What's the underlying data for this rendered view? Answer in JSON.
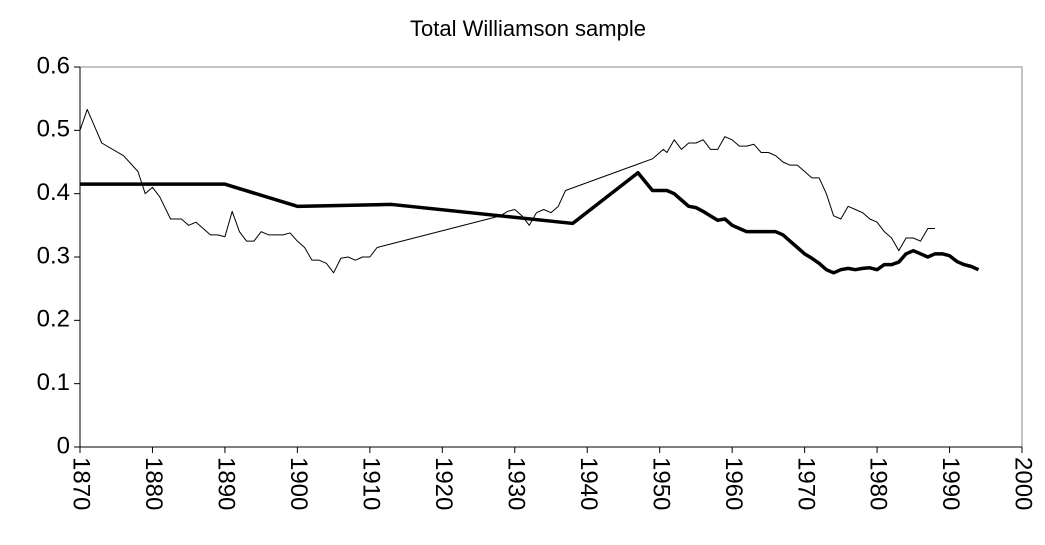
{
  "chart_data": {
    "type": "line",
    "title": "Total Williamson sample",
    "xlim": [
      1870,
      2000
    ],
    "xticks": [
      1870,
      1880,
      1890,
      1900,
      1910,
      1920,
      1930,
      1940,
      1950,
      1960,
      1970,
      1980,
      1990,
      2000
    ],
    "ylim": [
      0,
      0.6
    ],
    "yticks": [
      0,
      0.1,
      0.2,
      0.3,
      0.4,
      0.5,
      0.6
    ],
    "series": [
      {
        "color": "#000000",
        "line_width": 1,
        "x": [
          1870,
          1871,
          1873,
          1876,
          1878,
          1879,
          1880,
          1881,
          1882.5,
          1884,
          1885,
          1886,
          1888,
          1889,
          1890,
          1891,
          1892,
          1893,
          1894,
          1895,
          1896,
          1898,
          1899,
          1900,
          1901,
          1902,
          1903,
          1904,
          1905,
          1906,
          1907,
          1908,
          1909,
          1910,
          1911,
          1912,
          1928,
          1929,
          1930,
          1931,
          1932,
          1933,
          1934,
          1935,
          1936,
          1937,
          1949,
          1950.5,
          1951,
          1952,
          1953,
          1954,
          1955,
          1956,
          1957,
          1958,
          1959,
          1960,
          1961,
          1962,
          1963,
          1964,
          1965,
          1966,
          1967,
          1968,
          1969,
          1970,
          1971,
          1972,
          1973,
          1974,
          1975,
          1976,
          1977,
          1978,
          1979,
          1980,
          1981,
          1982,
          1983,
          1984,
          1985,
          1986,
          1987,
          1988
        ],
        "values": [
          0.5,
          0.533,
          0.48,
          0.46,
          0.435,
          0.4,
          0.41,
          0.395,
          0.36,
          0.36,
          0.35,
          0.355,
          0.335,
          0.335,
          0.332,
          0.372,
          0.34,
          0.325,
          0.325,
          0.34,
          0.335,
          0.335,
          0.338,
          0.325,
          0.315,
          0.295,
          0.295,
          0.29,
          0.275,
          0.298,
          0.3,
          0.295,
          0.3,
          0.3,
          0.315,
          0.318,
          0.365,
          0.372,
          0.375,
          0.365,
          0.35,
          0.37,
          0.375,
          0.37,
          0.38,
          0.405,
          0.455,
          0.47,
          0.465,
          0.485,
          0.47,
          0.48,
          0.48,
          0.485,
          0.47,
          0.47,
          0.49,
          0.485,
          0.475,
          0.475,
          0.478,
          0.465,
          0.465,
          0.46,
          0.45,
          0.445,
          0.445,
          0.435,
          0.425,
          0.425,
          0.4,
          0.365,
          0.36,
          0.38,
          0.375,
          0.37,
          0.36,
          0.355,
          0.34,
          0.33,
          0.31,
          0.33,
          0.33,
          0.325,
          0.345,
          0.345
        ]
      },
      {
        "color": "#000000",
        "line_width": 3.5,
        "x": [
          1870,
          1890,
          1900,
          1913,
          1938,
          1947,
          1949,
          1950,
          1951,
          1952,
          1953,
          1954,
          1955,
          1956,
          1957,
          1958,
          1959,
          1960,
          1961,
          1962,
          1963,
          1964,
          1965,
          1966,
          1967,
          1968,
          1969,
          1970,
          1971,
          1972,
          1973,
          1974,
          1975,
          1976,
          1977,
          1978,
          1979,
          1980,
          1981,
          1982,
          1983,
          1984,
          1985,
          1986,
          1987,
          1988,
          1989,
          1990,
          1991,
          1992,
          1993,
          1994
        ],
        "values": [
          0.415,
          0.415,
          0.38,
          0.383,
          0.353,
          0.433,
          0.405,
          0.405,
          0.405,
          0.4,
          0.39,
          0.38,
          0.378,
          0.372,
          0.365,
          0.358,
          0.36,
          0.35,
          0.345,
          0.34,
          0.34,
          0.34,
          0.34,
          0.34,
          0.335,
          0.325,
          0.315,
          0.305,
          0.298,
          0.29,
          0.28,
          0.275,
          0.28,
          0.282,
          0.28,
          0.282,
          0.283,
          0.28,
          0.288,
          0.288,
          0.292,
          0.305,
          0.31,
          0.305,
          0.3,
          0.305,
          0.305,
          0.302,
          0.293,
          0.288,
          0.285,
          0.28
        ]
      }
    ]
  }
}
